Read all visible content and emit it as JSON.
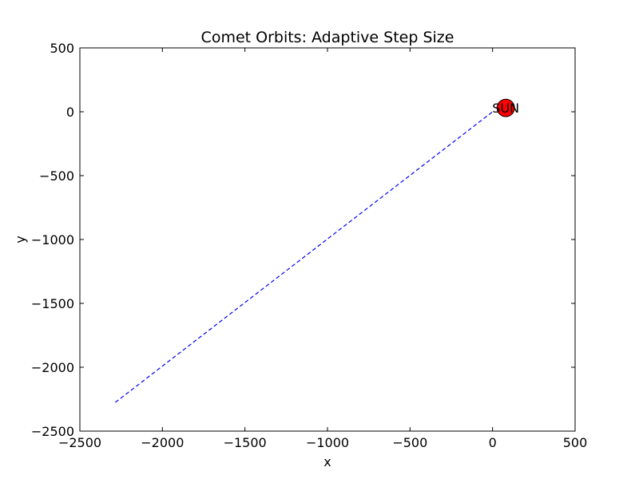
{
  "chart_data": {
    "type": "line",
    "title": "Comet Orbits: Adaptive Step Size",
    "xlabel": "x",
    "ylabel": "y",
    "xlim": [
      -2500,
      500
    ],
    "ylim": [
      -2500,
      500
    ],
    "xticks": [
      -2500,
      -2000,
      -1500,
      -1000,
      -500,
      0,
      500
    ],
    "yticks": [
      -2500,
      -2000,
      -1500,
      -1000,
      -500,
      0,
      500
    ],
    "xtick_labels": [
      "−2500",
      "−2000",
      "−1500",
      "−1000",
      "−500",
      "0",
      "500"
    ],
    "ytick_labels": [
      "−2500",
      "−2000",
      "−1500",
      "−1000",
      "−500",
      "0",
      "500"
    ],
    "grid": false,
    "series": [
      {
        "x": [
          -2285,
          0
        ],
        "y": [
          -2275,
          0
        ],
        "color": "#0000ff",
        "line_style": "dashed"
      }
    ],
    "sun": {
      "label": "SUN",
      "x": 80,
      "y": 30,
      "radius_data": 53,
      "fill": "#ff0000",
      "stroke": "#000000"
    }
  }
}
